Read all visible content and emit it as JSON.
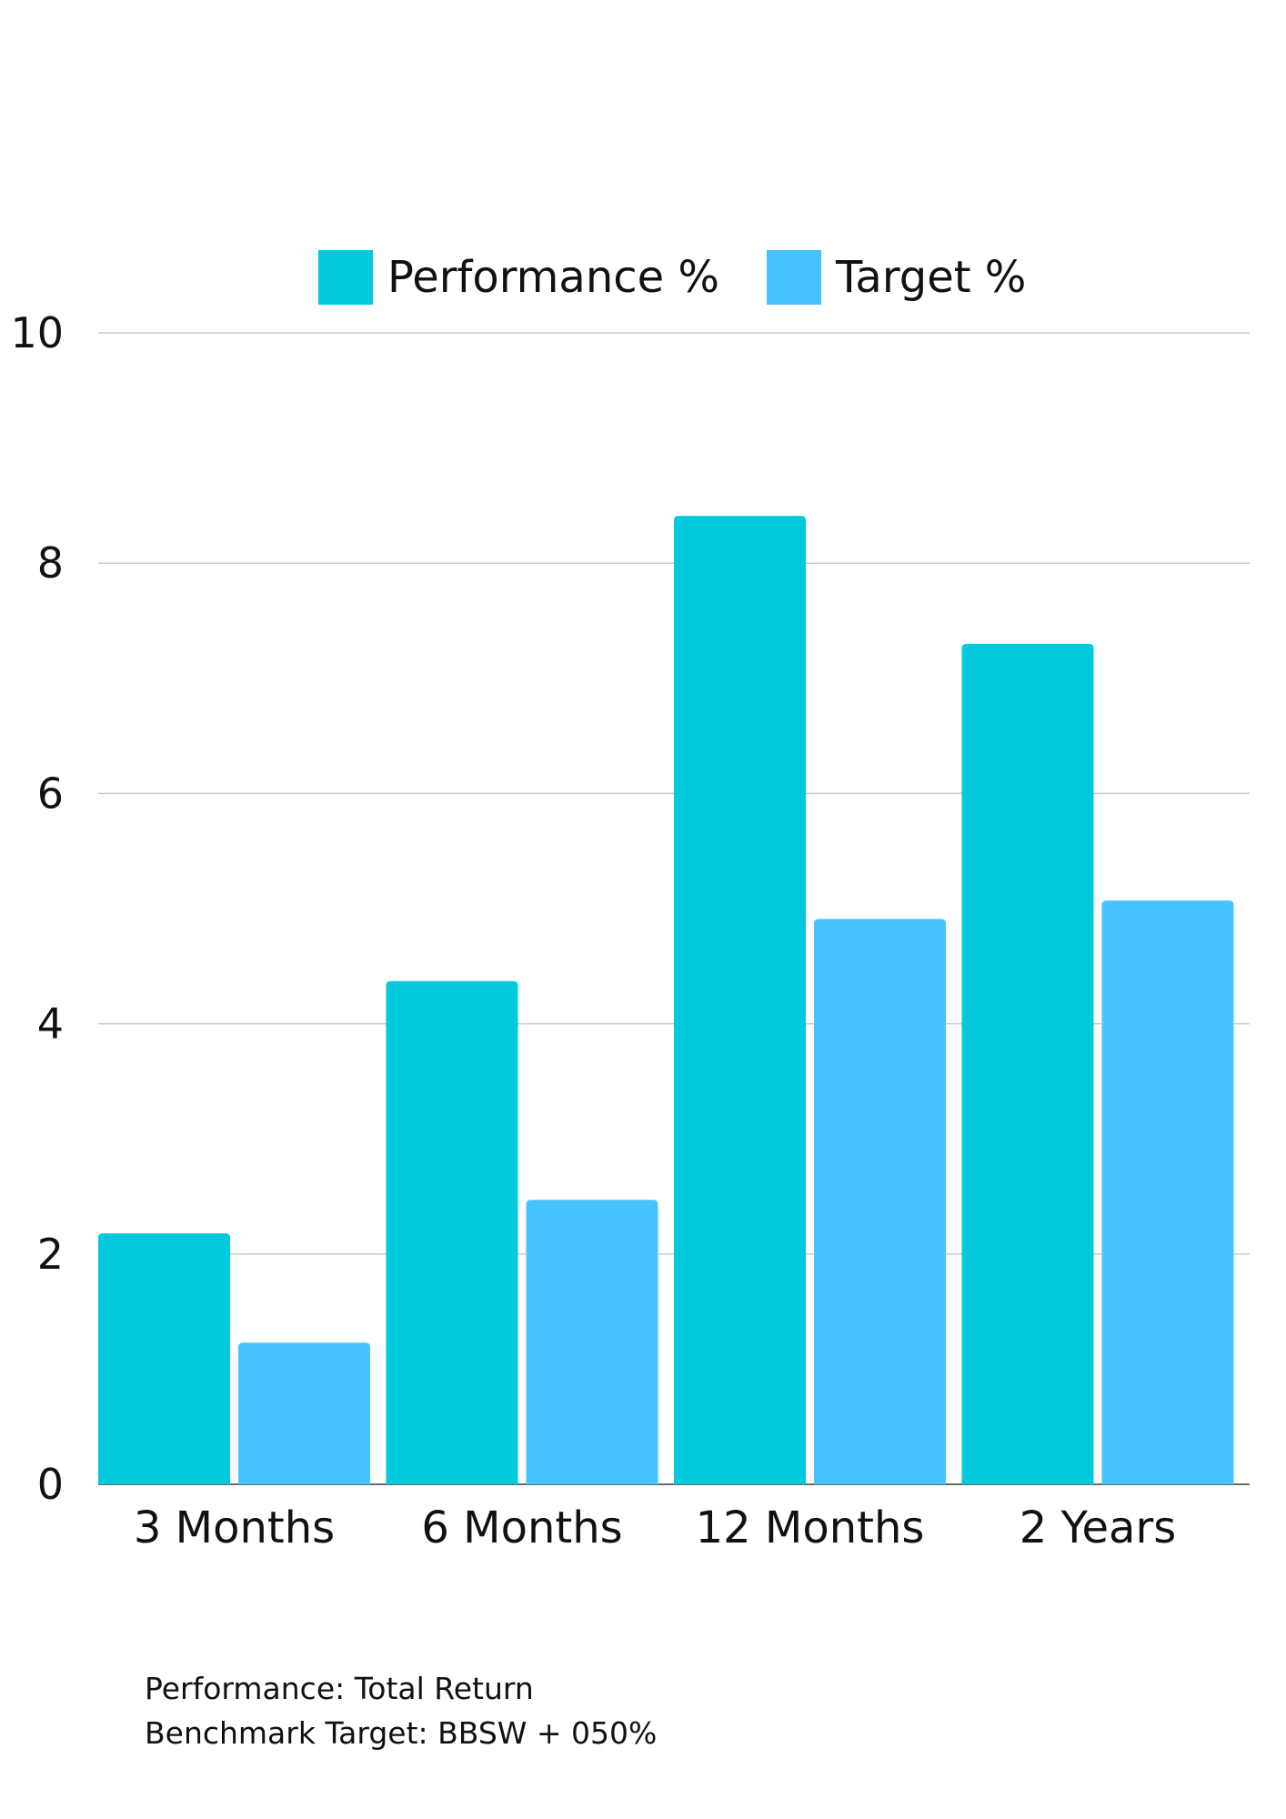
{
  "chart_data": {
    "type": "bar",
    "categories": [
      "3 Months",
      "6 Months",
      "12 Months",
      "2 Years"
    ],
    "series": [
      {
        "name": "Performance %",
        "values": [
          2.18,
          4.37,
          8.41,
          7.3
        ],
        "color": "#00C9DB"
      },
      {
        "name": "Target %",
        "values": [
          1.23,
          2.47,
          4.91,
          5.07
        ],
        "color": "#47C3FF"
      }
    ],
    "y_ticks": [
      "0",
      "2",
      "4",
      "6",
      "8",
      "10"
    ],
    "ylim": [
      0,
      10
    ],
    "grid": true,
    "legend_position": "top",
    "title": "",
    "xlabel": "",
    "ylabel": ""
  },
  "footnotes": {
    "line1": "Performance: Total Return",
    "line2": "Benchmark Target: BBSW + 050%"
  }
}
